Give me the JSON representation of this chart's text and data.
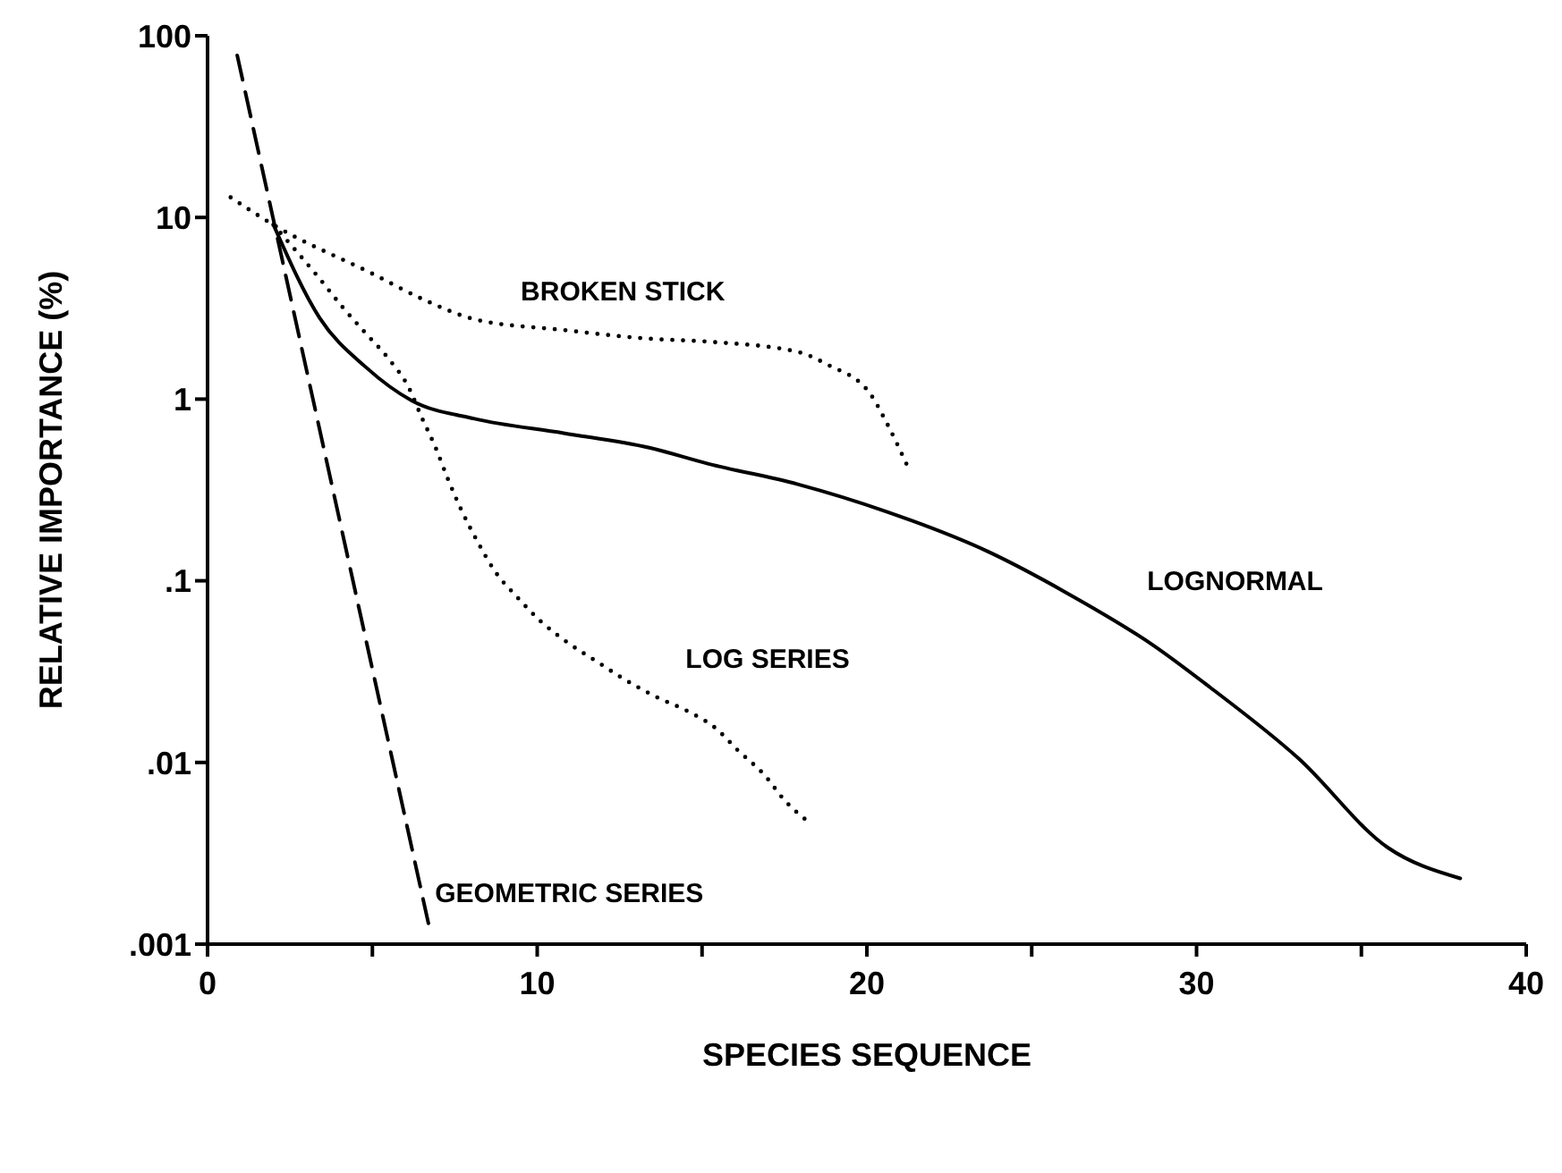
{
  "chart_data": {
    "type": "line",
    "xlabel": "SPECIES SEQUENCE",
    "ylabel": "RELATIVE IMPORTANCE (%)",
    "log": "y",
    "grid": false,
    "legend": false,
    "marker": "none",
    "xlim": [
      0,
      40
    ],
    "xticks": [
      0,
      {
        "value": 5,
        "label": null
      },
      10,
      {
        "value": 15,
        "label": null
      },
      20,
      {
        "value": 25,
        "label": null
      },
      30,
      {
        "value": 35,
        "label": null
      },
      40
    ],
    "ylim": [
      0.001,
      100
    ],
    "yticks": [
      {
        "value": 0.001,
        "label": ".001"
      },
      {
        "value": 0.01,
        "label": ".01"
      },
      {
        "value": 0.1,
        "label": ".1"
      },
      1,
      10,
      100
    ],
    "series": [
      {
        "name": "GEOMETRIC SERIES",
        "color": "#000000",
        "line_style": "dashed",
        "x": [
          0.9,
          6.7
        ],
        "values": [
          78,
          0.0013
        ]
      },
      {
        "name": "BROKEN STICK",
        "color": "#000000",
        "line_style": "dotted",
        "x": [
          0.7,
          2.0,
          5.0,
          6.6,
          8.1,
          10.8,
          13.4,
          15.2,
          17.9,
          18.8,
          20.1,
          20.6,
          21.2
        ],
        "values": [
          12.9,
          9.1,
          4.9,
          3.5,
          2.75,
          2.4,
          2.15,
          2.07,
          1.82,
          1.55,
          1.07,
          0.74,
          0.44
        ]
      },
      {
        "name": "LOG SERIES",
        "color": "#000000",
        "line_style": "dotted",
        "x": [
          2.0,
          2.7,
          3.4,
          4.1,
          4.8,
          5.5,
          6.1,
          6.5,
          6.9,
          7.3,
          7.7,
          8.2,
          8.7,
          9.4,
          10.1,
          10.9,
          11.8,
          12.6,
          13.6,
          14.6,
          15.4,
          16.1,
          16.9,
          17.5,
          18.3
        ],
        "values": [
          9.1,
          6.5,
          4.6,
          3.2,
          2.3,
          1.66,
          1.16,
          0.79,
          0.55,
          0.36,
          0.245,
          0.163,
          0.114,
          0.081,
          0.06,
          0.046,
          0.036,
          0.029,
          0.023,
          0.019,
          0.0155,
          0.0116,
          0.0085,
          0.0062,
          0.0046
        ]
      },
      {
        "name": "LOGNORMAL",
        "color": "#000000",
        "line_style": "solid",
        "x": [
          2.0,
          3.4,
          4.8,
          6.2,
          8.1,
          10.8,
          13.4,
          15.2,
          17.9,
          20.6,
          23.7,
          26.0,
          28.7,
          30.4,
          33.1,
          35.8,
          38.0
        ],
        "values": [
          9.1,
          2.8,
          1.5,
          0.98,
          0.78,
          0.65,
          0.54,
          0.44,
          0.34,
          0.24,
          0.144,
          0.087,
          0.044,
          0.026,
          0.0105,
          0.0034,
          0.0023
        ]
      }
    ]
  }
}
